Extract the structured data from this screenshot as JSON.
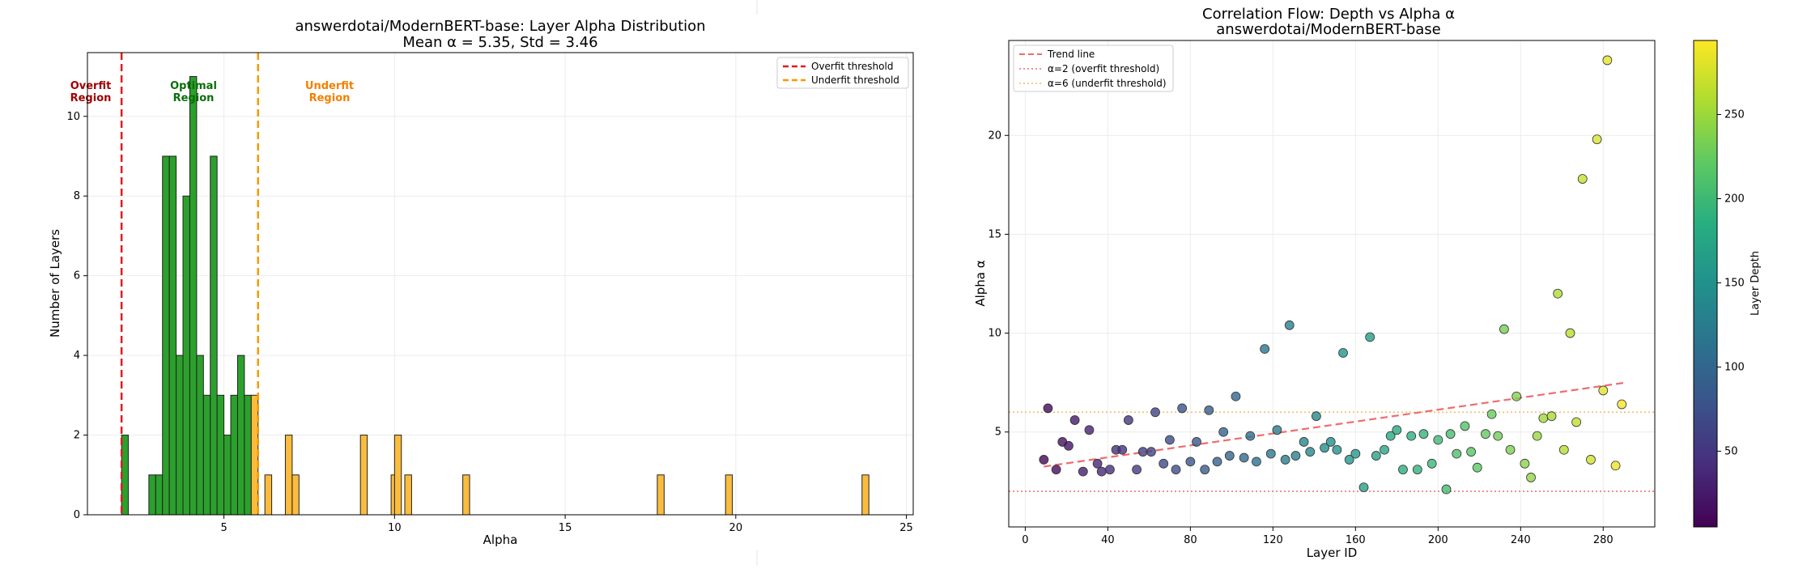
{
  "chart_data": [
    {
      "type": "bar",
      "title": "answerdotai/ModernBERT-base: Layer Alpha Distribution",
      "subtitle": "Mean α = 5.35, Std = 3.46",
      "xlabel": "Alpha",
      "ylabel": "Number of Layers",
      "xlim": [
        1.0,
        25.2
      ],
      "ylim": [
        0,
        11.6
      ],
      "xticks": [
        "5",
        "10",
        "15",
        "20",
        "25"
      ],
      "yticks": [
        "0",
        "2",
        "4",
        "6",
        "8",
        "10"
      ],
      "grid": true,
      "bin_width": 0.2,
      "thresholds": {
        "overfit": 2,
        "underfit": 6
      },
      "legend": {
        "position": "top-right",
        "entries": [
          "Overfit threshold",
          "Underfit threshold"
        ]
      },
      "regions": {
        "overfit": [
          "Overfit",
          "Region"
        ],
        "optimal": [
          "Optimal",
          "Region"
        ],
        "underfit": [
          "Underfit",
          "Region"
        ]
      },
      "colors": {
        "optimal": "#2ca02c",
        "underfit": "#fbbc3d",
        "overfit_line": "#e41a1c",
        "underfit_line": "#f59a00",
        "overfit_text": "#a00000",
        "optimal_text": "#0a6e0a",
        "underfit_text": "#f28000"
      },
      "bins": [
        {
          "x": 2.1,
          "count": 2,
          "group": "optimal"
        },
        {
          "x": 2.9,
          "count": 1,
          "group": "optimal"
        },
        {
          "x": 3.1,
          "count": 1,
          "group": "optimal"
        },
        {
          "x": 3.3,
          "count": 9,
          "group": "optimal"
        },
        {
          "x": 3.5,
          "count": 9,
          "group": "optimal"
        },
        {
          "x": 3.7,
          "count": 4,
          "group": "optimal"
        },
        {
          "x": 3.9,
          "count": 8,
          "group": "optimal"
        },
        {
          "x": 4.1,
          "count": 11,
          "group": "optimal"
        },
        {
          "x": 4.3,
          "count": 4,
          "group": "optimal"
        },
        {
          "x": 4.5,
          "count": 3,
          "group": "optimal"
        },
        {
          "x": 4.7,
          "count": 9,
          "group": "optimal"
        },
        {
          "x": 4.9,
          "count": 3,
          "group": "optimal"
        },
        {
          "x": 5.1,
          "count": 2,
          "group": "optimal"
        },
        {
          "x": 5.3,
          "count": 3,
          "group": "optimal"
        },
        {
          "x": 5.5,
          "count": 4,
          "group": "optimal"
        },
        {
          "x": 5.7,
          "count": 3,
          "group": "optimal"
        },
        {
          "x": 5.9,
          "count": 3,
          "group": "underfit"
        },
        {
          "x": 6.3,
          "count": 1,
          "group": "underfit"
        },
        {
          "x": 6.9,
          "count": 2,
          "group": "underfit"
        },
        {
          "x": 7.1,
          "count": 1,
          "group": "underfit"
        },
        {
          "x": 9.1,
          "count": 2,
          "group": "underfit"
        },
        {
          "x": 10.0,
          "count": 1,
          "group": "underfit"
        },
        {
          "x": 10.1,
          "count": 2,
          "group": "underfit"
        },
        {
          "x": 10.4,
          "count": 1,
          "group": "underfit"
        },
        {
          "x": 12.1,
          "count": 1,
          "group": "underfit"
        },
        {
          "x": 17.8,
          "count": 1,
          "group": "underfit"
        },
        {
          "x": 19.8,
          "count": 1,
          "group": "underfit"
        },
        {
          "x": 23.8,
          "count": 1,
          "group": "underfit"
        }
      ]
    },
    {
      "type": "scatter",
      "title": [
        "Correlation Flow: Depth vs Alpha α",
        "answerdotai/ModernBERT-base"
      ],
      "xlabel": "Layer ID",
      "ylabel": "Alpha α",
      "xlim": [
        -8,
        305
      ],
      "ylim": [
        0.2,
        24.8
      ],
      "xticks": [
        "0",
        "40",
        "80",
        "120",
        "160",
        "200",
        "240",
        "280"
      ],
      "yticks": [
        "5",
        "10",
        "15",
        "20"
      ],
      "grid": true,
      "colorbar": {
        "label": "Layer Depth",
        "range": [
          5,
          294
        ],
        "ticks": [
          "50",
          "100",
          "150",
          "200",
          "250"
        ]
      },
      "legend": {
        "position": "top-left",
        "entries": [
          "Trend line",
          "α=2 (overfit threshold)",
          "α=6 (underfit threshold)"
        ]
      },
      "trend": {
        "x": [
          9,
          291
        ],
        "y": [
          3.25,
          7.5
        ]
      },
      "hlines": {
        "overfit": 2,
        "underfit": 6
      },
      "colors": {
        "trend": "#f06a6a",
        "overfit_line": "#f06a6a",
        "underfit_line": "#f5b860"
      },
      "points": [
        [
          9,
          3.6
        ],
        [
          11,
          6.2
        ],
        [
          15,
          3.1
        ],
        [
          18,
          4.5
        ],
        [
          21,
          4.3
        ],
        [
          24,
          5.6
        ],
        [
          28,
          3.0
        ],
        [
          31,
          5.1
        ],
        [
          35,
          3.4
        ],
        [
          37,
          3.0
        ],
        [
          41,
          3.1
        ],
        [
          44,
          4.1
        ],
        [
          47,
          4.1
        ],
        [
          50,
          5.6
        ],
        [
          54,
          3.1
        ],
        [
          57,
          4.0
        ],
        [
          61,
          4.0
        ],
        [
          63,
          6.0
        ],
        [
          67,
          3.4
        ],
        [
          70,
          4.6
        ],
        [
          73,
          3.1
        ],
        [
          76,
          6.2
        ],
        [
          80,
          3.5
        ],
        [
          83,
          4.5
        ],
        [
          87,
          3.1
        ],
        [
          89,
          6.1
        ],
        [
          93,
          3.5
        ],
        [
          96,
          5.0
        ],
        [
          99,
          3.8
        ],
        [
          102,
          6.8
        ],
        [
          106,
          3.7
        ],
        [
          109,
          4.8
        ],
        [
          112,
          3.5
        ],
        [
          116,
          9.2
        ],
        [
          119,
          3.9
        ],
        [
          122,
          5.1
        ],
        [
          126,
          3.6
        ],
        [
          128,
          10.4
        ],
        [
          131,
          3.8
        ],
        [
          135,
          4.5
        ],
        [
          138,
          4.0
        ],
        [
          141,
          5.8
        ],
        [
          145,
          4.2
        ],
        [
          148,
          4.5
        ],
        [
          151,
          4.1
        ],
        [
          154,
          9.0
        ],
        [
          157,
          3.6
        ],
        [
          160,
          3.9
        ],
        [
          164,
          2.2
        ],
        [
          167,
          9.8
        ],
        [
          170,
          3.8
        ],
        [
          174,
          4.1
        ],
        [
          177,
          4.8
        ],
        [
          180,
          5.1
        ],
        [
          183,
          3.1
        ],
        [
          187,
          4.8
        ],
        [
          190,
          3.1
        ],
        [
          193,
          4.9
        ],
        [
          197,
          3.4
        ],
        [
          200,
          4.6
        ],
        [
          204,
          2.1
        ],
        [
          206,
          4.9
        ],
        [
          209,
          3.9
        ],
        [
          213,
          5.3
        ],
        [
          216,
          4.0
        ],
        [
          219,
          3.2
        ],
        [
          223,
          4.9
        ],
        [
          226,
          5.9
        ],
        [
          229,
          4.8
        ],
        [
          232,
          10.2
        ],
        [
          235,
          4.1
        ],
        [
          238,
          6.8
        ],
        [
          242,
          3.4
        ],
        [
          245,
          2.7
        ],
        [
          248,
          4.8
        ],
        [
          251,
          5.7
        ],
        [
          255,
          5.8
        ],
        [
          258,
          12.0
        ],
        [
          261,
          4.1
        ],
        [
          264,
          10.0
        ],
        [
          267,
          5.5
        ],
        [
          270,
          17.8
        ],
        [
          274,
          3.6
        ],
        [
          277,
          19.8
        ],
        [
          280,
          7.1
        ],
        [
          282,
          23.8
        ],
        [
          286,
          3.3
        ],
        [
          289,
          6.4
        ]
      ]
    }
  ]
}
